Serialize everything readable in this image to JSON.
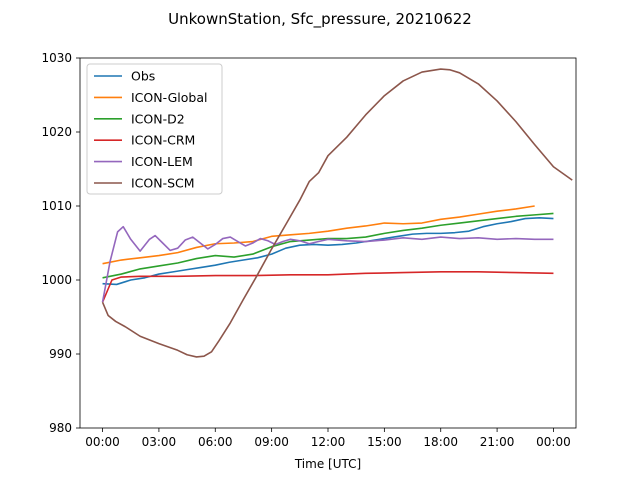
{
  "chart_data": {
    "type": "line",
    "title": "UnkownStation, Sfc_pressure, 20210622",
    "xlabel": "Time [UTC]",
    "ylabel": "",
    "x_unit": "hours",
    "xlim": [
      -1.2,
      25.2
    ],
    "ylim": [
      980,
      1030
    ],
    "x_ticks": [
      0,
      3,
      6,
      9,
      12,
      15,
      18,
      21,
      24
    ],
    "x_tick_labels": [
      "00:00",
      "03:00",
      "06:00",
      "09:00",
      "12:00",
      "15:00",
      "18:00",
      "21:00",
      "00:00"
    ],
    "y_ticks": [
      980,
      990,
      1000,
      1010,
      1020,
      1030
    ],
    "y_tick_labels": [
      "980",
      "990",
      "1000",
      "1010",
      "1020",
      "1030"
    ],
    "grid": false,
    "legend_position": "top-left",
    "series": [
      {
        "name": "Obs",
        "color": "#1f77b4",
        "points": [
          [
            0,
            999.5
          ],
          [
            0.75,
            999.4
          ],
          [
            1.5,
            1000.0
          ],
          [
            2.25,
            1000.3
          ],
          [
            3,
            1000.8
          ],
          [
            3.75,
            1001.1
          ],
          [
            4.5,
            1001.4
          ],
          [
            5.25,
            1001.7
          ],
          [
            6,
            1002.0
          ],
          [
            6.75,
            1002.4
          ],
          [
            7.5,
            1002.7
          ],
          [
            8.25,
            1003.0
          ],
          [
            9,
            1003.5
          ],
          [
            9.75,
            1004.3
          ],
          [
            10.5,
            1004.7
          ],
          [
            11.25,
            1004.8
          ],
          [
            12,
            1004.7
          ],
          [
            12.75,
            1004.8
          ],
          [
            13.5,
            1005.0
          ],
          [
            14.25,
            1005.3
          ],
          [
            15,
            1005.6
          ],
          [
            15.75,
            1005.9
          ],
          [
            16.5,
            1006.2
          ],
          [
            17.25,
            1006.3
          ],
          [
            18,
            1006.3
          ],
          [
            18.75,
            1006.4
          ],
          [
            19.5,
            1006.6
          ],
          [
            20.25,
            1007.2
          ],
          [
            21,
            1007.6
          ],
          [
            21.75,
            1007.9
          ],
          [
            22.5,
            1008.3
          ],
          [
            23.25,
            1008.4
          ],
          [
            24,
            1008.3
          ]
        ]
      },
      {
        "name": "ICON-Global",
        "color": "#ff7f0e",
        "points": [
          [
            0,
            1002.2
          ],
          [
            1,
            1002.7
          ],
          [
            2,
            1003.0
          ],
          [
            3,
            1003.3
          ],
          [
            4,
            1003.7
          ],
          [
            5,
            1004.4
          ],
          [
            6,
            1004.9
          ],
          [
            7,
            1005.0
          ],
          [
            8,
            1005.2
          ],
          [
            9,
            1005.9
          ],
          [
            10,
            1006.1
          ],
          [
            11,
            1006.3
          ],
          [
            12,
            1006.6
          ],
          [
            13,
            1007.0
          ],
          [
            14,
            1007.3
          ],
          [
            15,
            1007.7
          ],
          [
            16,
            1007.6
          ],
          [
            17,
            1007.7
          ],
          [
            18,
            1008.2
          ],
          [
            19,
            1008.5
          ],
          [
            20,
            1008.9
          ],
          [
            21,
            1009.3
          ],
          [
            22,
            1009.6
          ],
          [
            23,
            1010.0
          ]
        ]
      },
      {
        "name": "ICON-D2",
        "color": "#2ca02c",
        "points": [
          [
            0,
            1000.3
          ],
          [
            1,
            1000.8
          ],
          [
            2,
            1001.5
          ],
          [
            3,
            1001.9
          ],
          [
            4,
            1002.3
          ],
          [
            5,
            1002.9
          ],
          [
            6,
            1003.3
          ],
          [
            7,
            1003.1
          ],
          [
            8,
            1003.5
          ],
          [
            9,
            1004.5
          ],
          [
            10,
            1005.2
          ],
          [
            11,
            1005.4
          ],
          [
            12,
            1005.6
          ],
          [
            13,
            1005.6
          ],
          [
            14,
            1005.8
          ],
          [
            15,
            1006.3
          ],
          [
            16,
            1006.7
          ],
          [
            17,
            1007.0
          ],
          [
            18,
            1007.4
          ],
          [
            19,
            1007.7
          ],
          [
            20,
            1008.0
          ],
          [
            21,
            1008.3
          ],
          [
            22,
            1008.6
          ],
          [
            23,
            1008.8
          ],
          [
            24,
            1009.0
          ]
        ]
      },
      {
        "name": "ICON-CRM",
        "color": "#d62728",
        "points": [
          [
            0,
            997.0
          ],
          [
            0.5,
            1000.0
          ],
          [
            1,
            1000.4
          ],
          [
            2,
            1000.5
          ],
          [
            4,
            1000.5
          ],
          [
            6,
            1000.6
          ],
          [
            8,
            1000.6
          ],
          [
            10,
            1000.7
          ],
          [
            12,
            1000.7
          ],
          [
            14,
            1000.9
          ],
          [
            16,
            1001.0
          ],
          [
            18,
            1001.1
          ],
          [
            20,
            1001.1
          ],
          [
            22,
            1001.0
          ],
          [
            24,
            1000.9
          ]
        ]
      },
      {
        "name": "ICON-LEM",
        "color": "#9467bd",
        "points": [
          [
            0,
            997.0
          ],
          [
            0.4,
            1002.5
          ],
          [
            0.8,
            1006.5
          ],
          [
            1.1,
            1007.2
          ],
          [
            1.5,
            1005.5
          ],
          [
            2,
            1003.9
          ],
          [
            2.5,
            1005.5
          ],
          [
            2.8,
            1006.0
          ],
          [
            3.2,
            1005.0
          ],
          [
            3.6,
            1004.0
          ],
          [
            4,
            1004.3
          ],
          [
            4.4,
            1005.4
          ],
          [
            4.8,
            1005.8
          ],
          [
            5.2,
            1005.0
          ],
          [
            5.6,
            1004.2
          ],
          [
            6,
            1004.8
          ],
          [
            6.4,
            1005.6
          ],
          [
            6.8,
            1005.8
          ],
          [
            7.2,
            1005.2
          ],
          [
            7.6,
            1004.6
          ],
          [
            8,
            1005.0
          ],
          [
            8.4,
            1005.6
          ],
          [
            8.8,
            1005.3
          ],
          [
            9.2,
            1004.8
          ],
          [
            9.6,
            1005.2
          ],
          [
            10,
            1005.5
          ],
          [
            10.5,
            1005.3
          ],
          [
            11,
            1004.9
          ],
          [
            11.5,
            1005.2
          ],
          [
            12,
            1005.5
          ],
          [
            13,
            1005.3
          ],
          [
            14,
            1005.2
          ],
          [
            15,
            1005.4
          ],
          [
            16,
            1005.7
          ],
          [
            17,
            1005.5
          ],
          [
            18,
            1005.8
          ],
          [
            19,
            1005.6
          ],
          [
            20,
            1005.7
          ],
          [
            21,
            1005.5
          ],
          [
            22,
            1005.6
          ],
          [
            23,
            1005.5
          ],
          [
            24,
            1005.5
          ]
        ]
      },
      {
        "name": "ICON-SCM",
        "color": "#8c564b",
        "points": [
          [
            0,
            997.0
          ],
          [
            0.3,
            995.2
          ],
          [
            0.7,
            994.4
          ],
          [
            1.2,
            993.7
          ],
          [
            2,
            992.4
          ],
          [
            3,
            991.4
          ],
          [
            4,
            990.5
          ],
          [
            4.5,
            989.9
          ],
          [
            5,
            989.6
          ],
          [
            5.4,
            989.7
          ],
          [
            5.8,
            990.3
          ],
          [
            6.2,
            991.8
          ],
          [
            6.8,
            994.2
          ],
          [
            7.5,
            997.4
          ],
          [
            8.2,
            1000.5
          ],
          [
            9,
            1004.2
          ],
          [
            9.8,
            1007.7
          ],
          [
            10.5,
            1010.8
          ],
          [
            11,
            1013.3
          ],
          [
            11.5,
            1014.5
          ],
          [
            12,
            1016.8
          ],
          [
            13,
            1019.3
          ],
          [
            14,
            1022.3
          ],
          [
            15,
            1024.9
          ],
          [
            16,
            1026.9
          ],
          [
            17,
            1028.1
          ],
          [
            18,
            1028.5
          ],
          [
            18.5,
            1028.4
          ],
          [
            19,
            1028.0
          ],
          [
            20,
            1026.5
          ],
          [
            21,
            1024.2
          ],
          [
            22,
            1021.4
          ],
          [
            23,
            1018.3
          ],
          [
            24,
            1015.3
          ],
          [
            25,
            1013.5
          ]
        ]
      }
    ]
  }
}
